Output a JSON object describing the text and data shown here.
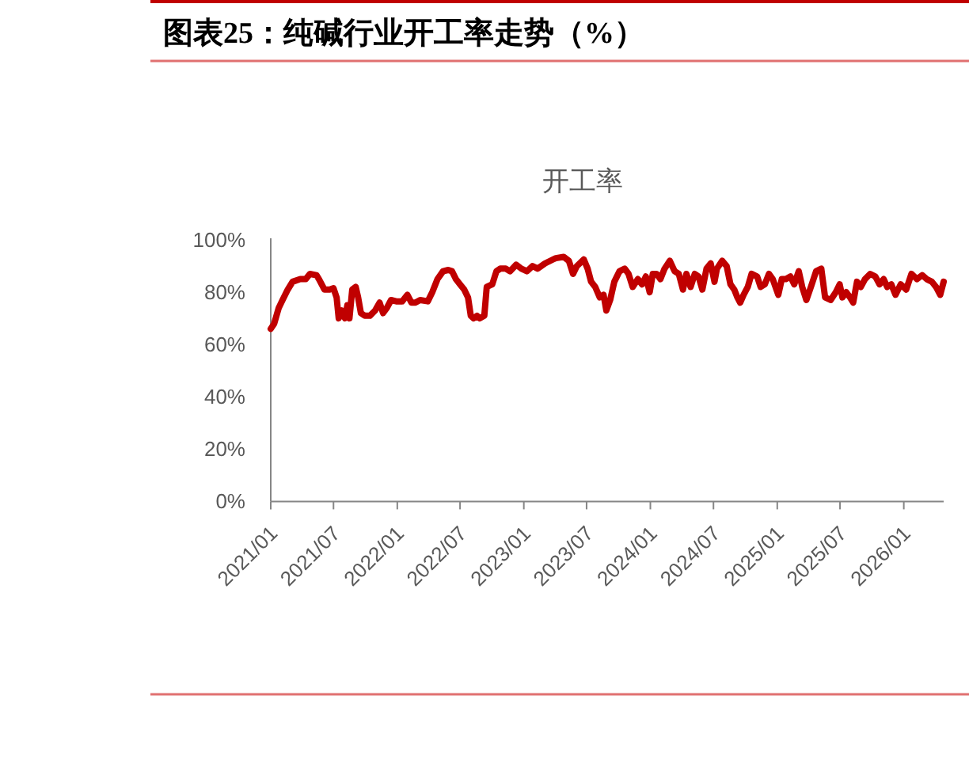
{
  "chart_data": {
    "type": "line",
    "title": "图表25：纯碱行业开工率走势（%）",
    "subtitle": "开工率",
    "x": [
      "2021-01-01",
      "2021-01-11",
      "2021-01-24",
      "2021-02-04",
      "2021-02-19",
      "2021-03-05",
      "2021-03-27",
      "2021-04-12",
      "2021-04-24",
      "2021-05-13",
      "2021-05-20",
      "2021-06-05",
      "2021-06-20",
      "2021-07-01",
      "2021-07-10",
      "2021-07-16",
      "2021-07-25",
      "2021-08-03",
      "2021-08-10",
      "2021-08-16",
      "2021-08-24",
      "2021-09-03",
      "2021-09-10",
      "2021-09-18",
      "2021-09-29",
      "2021-10-14",
      "2021-10-29",
      "2021-11-11",
      "2021-11-21",
      "2021-12-02",
      "2021-12-14",
      "2021-12-29",
      "2022-01-15",
      "2022-01-30",
      "2022-02-11",
      "2022-02-22",
      "2022-03-08",
      "2022-03-30",
      "2022-04-12",
      "2022-04-27",
      "2022-05-13",
      "2022-05-28",
      "2022-06-08",
      "2022-06-19",
      "2022-07-01",
      "2022-07-13",
      "2022-07-24",
      "2022-08-01",
      "2022-08-09",
      "2022-08-19",
      "2022-08-27",
      "2022-09-09",
      "2022-09-16",
      "2022-10-02",
      "2022-10-14",
      "2022-10-25",
      "2022-11-10",
      "2022-11-22",
      "2022-12-10",
      "2022-12-25",
      "2023-01-10",
      "2023-01-26",
      "2023-02-10",
      "2023-03-03",
      "2023-03-26",
      "2023-04-03",
      "2023-04-26",
      "2023-05-11",
      "2023-05-23",
      "2023-06-03",
      "2023-06-23",
      "2023-07-04",
      "2023-07-14",
      "2023-07-26",
      "2023-08-08",
      "2023-08-19",
      "2023-08-27",
      "2023-09-07",
      "2023-09-19",
      "2023-10-04",
      "2023-10-19",
      "2023-10-30",
      "2023-11-11",
      "2023-11-26",
      "2023-12-08",
      "2023-12-19",
      "2023-12-30",
      "2024-01-08",
      "2024-01-19",
      "2024-01-30",
      "2024-02-11",
      "2024-02-26",
      "2024-03-11",
      "2024-03-23",
      "2024-04-04",
      "2024-04-14",
      "2024-04-26",
      "2024-05-08",
      "2024-05-19",
      "2024-05-30",
      "2024-06-11",
      "2024-06-23",
      "2024-07-04",
      "2024-07-11",
      "2024-07-26",
      "2024-08-08",
      "2024-08-19",
      "2024-08-30",
      "2024-09-08",
      "2024-09-16",
      "2024-09-26",
      "2024-10-08",
      "2024-10-19",
      "2024-11-04",
      "2024-11-14",
      "2024-11-26",
      "2024-12-08",
      "2024-12-19",
      "2025-01-04",
      "2025-01-14",
      "2025-01-26",
      "2025-02-08",
      "2025-02-19",
      "2025-03-04",
      "2025-03-14",
      "2025-03-26",
      "2025-04-08",
      "2025-04-23",
      "2025-05-08",
      "2025-05-19",
      "2025-06-04",
      "2025-06-19",
      "2025-06-30",
      "2025-07-08",
      "2025-07-19",
      "2025-07-30",
      "2025-08-08",
      "2025-08-19",
      "2025-08-30",
      "2025-09-11",
      "2025-09-26",
      "2025-10-11",
      "2025-10-23",
      "2025-11-04",
      "2025-11-14",
      "2025-11-26",
      "2025-12-08",
      "2025-12-23",
      "2026-01-08",
      "2026-01-23",
      "2026-02-08",
      "2026-02-23",
      "2026-03-08",
      "2026-03-23",
      "2026-04-04",
      "2026-04-16",
      "2026-04-26"
    ],
    "series": [
      {
        "color": "#c00000",
        "values": [
          66,
          68,
          74,
          77,
          81,
          84,
          85,
          85,
          87,
          86.5,
          85,
          81,
          81,
          81.5,
          78,
          70,
          73,
          70,
          75,
          70,
          81,
          82,
          78,
          72,
          71,
          71,
          73,
          76,
          72,
          74,
          77,
          76.5,
          76.5,
          79,
          76,
          76,
          77,
          76.5,
          80,
          85,
          88,
          88.5,
          88,
          85,
          83,
          81,
          78,
          71,
          70,
          71,
          70,
          71,
          82,
          83,
          88,
          89,
          89,
          88,
          90.5,
          89,
          88,
          90,
          89,
          91,
          92.5,
          93,
          93.5,
          92,
          87,
          90,
          92.5,
          89,
          84,
          82,
          78,
          79,
          73,
          77,
          84,
          88,
          89,
          87,
          82,
          85,
          83,
          86,
          80,
          87,
          87,
          85,
          89,
          92,
          88,
          87,
          81,
          87,
          82,
          87,
          86,
          81,
          89,
          91,
          84,
          89,
          92,
          90,
          83,
          81,
          78,
          76,
          79,
          82,
          87,
          86,
          82,
          83,
          87,
          85,
          79,
          85,
          85,
          86,
          83,
          88,
          82,
          77,
          82,
          88,
          89,
          78,
          77,
          80,
          83,
          78,
          80,
          78,
          76,
          84,
          82,
          85,
          87,
          86,
          83,
          85,
          82,
          83,
          79,
          83,
          81,
          87,
          85,
          86.5,
          85,
          84,
          82,
          79,
          84
        ]
      }
    ],
    "xlim": [
      "2021-01-01",
      "2026-04-26"
    ],
    "xticks": [
      {
        "value": "2021-01",
        "label": "2021/01"
      },
      {
        "value": "2021-07",
        "label": "2021/07"
      },
      {
        "value": "2022-01",
        "label": "2022/01"
      },
      {
        "value": "2022-07",
        "label": "2022/07"
      },
      {
        "value": "2023-01",
        "label": "2023/01"
      },
      {
        "value": "2023-07",
        "label": "2023/07"
      },
      {
        "value": "2024-01",
        "label": "2024/01"
      },
      {
        "value": "2024-07",
        "label": "2024/07"
      },
      {
        "value": "2025-01",
        "label": "2025/01"
      },
      {
        "value": "2025-07",
        "label": "2025/07"
      },
      {
        "value": "2026-01",
        "label": "2026/01"
      }
    ],
    "ylim": [
      0,
      100
    ],
    "yticks": [
      {
        "value": 0,
        "label": "0%"
      },
      {
        "value": 20,
        "label": "20%"
      },
      {
        "value": 40,
        "label": "40%"
      },
      {
        "value": 60,
        "label": "60%"
      },
      {
        "value": 80,
        "label": "80%"
      },
      {
        "value": 100,
        "label": "100%"
      }
    ]
  }
}
